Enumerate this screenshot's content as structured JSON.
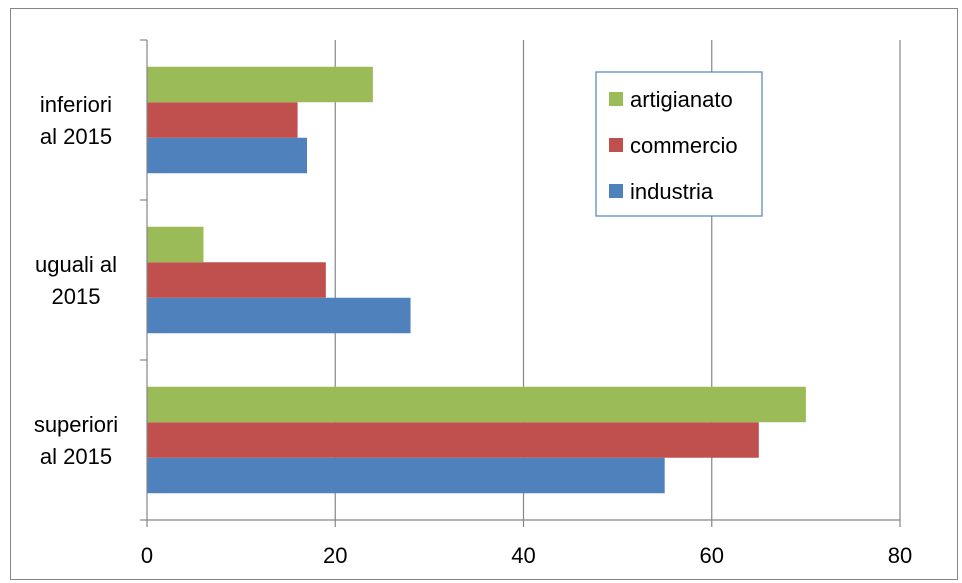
{
  "chart_data": {
    "type": "bar",
    "orientation": "horizontal",
    "categories": [
      [
        "inferiori",
        "al 2015"
      ],
      [
        "uguali al",
        "2015"
      ],
      [
        "superiori",
        "al 2015"
      ]
    ],
    "series": [
      {
        "name": "industria",
        "values": [
          17,
          28,
          55
        ],
        "color": "#4F81BD"
      },
      {
        "name": "commercio",
        "values": [
          16,
          19,
          65
        ],
        "color": "#C0504D"
      },
      {
        "name": "artigianato",
        "values": [
          24,
          6,
          70
        ],
        "color": "#9BBB59"
      }
    ],
    "xlim": [
      0,
      80
    ],
    "xticks": [
      "0",
      "20",
      "40",
      "60",
      "80"
    ],
    "grid": "vertical",
    "legend_position": "top-right",
    "legend_order": [
      "artigianato",
      "commercio",
      "industria"
    ],
    "title": "",
    "xlabel": "",
    "ylabel": ""
  }
}
